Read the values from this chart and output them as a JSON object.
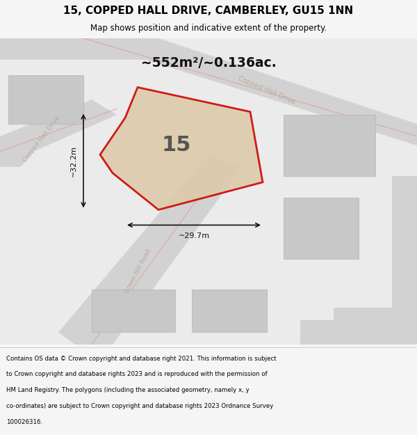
{
  "title": "15, COPPED HALL DRIVE, CAMBERLEY, GU15 1NN",
  "subtitle": "Map shows position and indicative extent of the property.",
  "area_text": "~552m²/~0.136ac.",
  "property_number": "15",
  "dim_vertical": "~32.2m",
  "dim_horizontal": "~29.7m",
  "footer_lines": [
    "Contains OS data © Crown copyright and database right 2021. This information is subject",
    "to Crown copyright and database rights 2023 and is reproduced with the permission of",
    "HM Land Registry. The polygons (including the associated geometry, namely x, y",
    "co-ordinates) are subject to Crown copyright and database rights 2023 Ordnance Survey",
    "100026316."
  ],
  "bg_color": "#f5f5f5",
  "map_bg_color": "#ececec",
  "road_color": "#d8d8d8",
  "highlight_color": "#cc0000",
  "highlight_fill": "#ddc9a8",
  "road_line_color": "#e8a0a0",
  "title_color": "#000000",
  "footer_color": "#000000"
}
